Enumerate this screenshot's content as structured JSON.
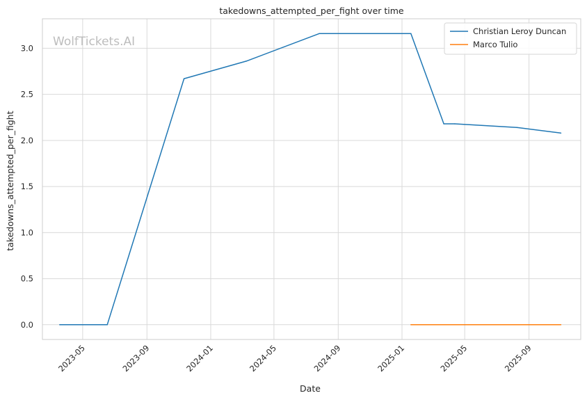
{
  "chart_data": {
    "type": "line",
    "title": "takedowns_attempted_per_fight over time",
    "xlabel": "Date",
    "ylabel": "takedowns_attempted_per_fight",
    "watermark": "WolfTickets.AI",
    "x_ticks": [
      "2023-05",
      "2023-09",
      "2024-01",
      "2024-05",
      "2024-09",
      "2025-01",
      "2025-05",
      "2025-09"
    ],
    "y_ticks": [
      "0.0",
      "0.5",
      "1.0",
      "1.5",
      "2.0",
      "2.5",
      "3.0"
    ],
    "xlim": [
      "2023-02-13",
      "2025-12-09"
    ],
    "ylim": [
      -0.16,
      3.32
    ],
    "grid": true,
    "legend_position": "top-right",
    "series": [
      {
        "name": "Christian Leroy Duncan",
        "color": "#1f77b4",
        "points": [
          {
            "x": "2023-03-18",
            "y": 0.0
          },
          {
            "x": "2023-06-17",
            "y": 0.0
          },
          {
            "x": "2023-11-11",
            "y": 2.67
          },
          {
            "x": "2024-03-09",
            "y": 2.86
          },
          {
            "x": "2024-07-27",
            "y": 3.16
          },
          {
            "x": "2025-01-18",
            "y": 3.16
          },
          {
            "x": "2025-03-22",
            "y": 2.18
          },
          {
            "x": "2025-04-12",
            "y": 2.18
          },
          {
            "x": "2025-08-09",
            "y": 2.14
          },
          {
            "x": "2025-11-01",
            "y": 2.08
          }
        ]
      },
      {
        "name": "Marco Tulio",
        "color": "#ff7f0e",
        "points": [
          {
            "x": "2025-01-18",
            "y": 0.0
          },
          {
            "x": "2025-11-01",
            "y": 0.0
          }
        ]
      }
    ]
  }
}
